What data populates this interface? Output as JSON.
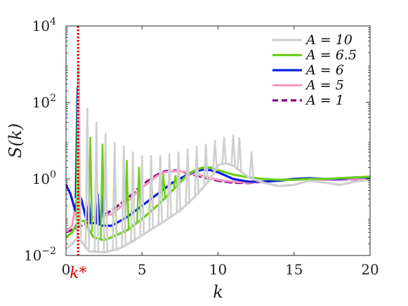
{
  "chart_data": {
    "type": "line",
    "xlabel": "k",
    "ylabel": "S(k)",
    "xlim": [
      0,
      20
    ],
    "ylim": [
      0.01,
      10000
    ],
    "yscale": "log",
    "xticks": [
      {
        "value": 0,
        "label": "0"
      },
      {
        "value": 5,
        "label": "5"
      },
      {
        "value": 10,
        "label": "10"
      },
      {
        "value": 15,
        "label": "15"
      },
      {
        "value": 20,
        "label": "20"
      }
    ],
    "yticks": [
      {
        "value": 0.01,
        "base": "10",
        "exp": "−2"
      },
      {
        "value": 1,
        "base": "10",
        "exp": "0"
      },
      {
        "value": 100,
        "base": "10",
        "exp": "2"
      },
      {
        "value": 10000,
        "base": "10",
        "exp": "4"
      }
    ],
    "grid": false,
    "legend_position": "top-right",
    "annotations": [
      {
        "text": "k*",
        "x": 0.8,
        "color": "#e00000",
        "style": "dotted-vertical-line"
      }
    ],
    "series": [
      {
        "name": "A = 10",
        "color": "#cfcfcf",
        "dash": "solid",
        "x": [
          0,
          0.4,
          0.8,
          1.5,
          2.5,
          3.5,
          4.5,
          5.5,
          6.5,
          7.5,
          8.5,
          9.5,
          10.0,
          10.5,
          11.0,
          11.5,
          12.0,
          13.0,
          14.0,
          15.0,
          16.0,
          17.0,
          18.0,
          19.0,
          20.0
        ],
        "y": [
          0.015,
          0.02,
          0.03,
          0.013,
          0.012,
          0.015,
          0.025,
          0.045,
          0.08,
          0.15,
          0.35,
          1.0,
          2.3,
          2.6,
          2.2,
          1.6,
          1.1,
          0.8,
          0.65,
          0.7,
          0.9,
          0.8,
          0.7,
          0.85,
          0.95
        ],
        "spikes": [
          {
            "x": 0.85,
            "y": 900
          },
          {
            "x": 1.4,
            "y": 70
          },
          {
            "x": 2.0,
            "y": 30
          },
          {
            "x": 2.6,
            "y": 15
          },
          {
            "x": 3.2,
            "y": 9
          },
          {
            "x": 3.8,
            "y": 7
          },
          {
            "x": 4.4,
            "y": 5
          },
          {
            "x": 5.0,
            "y": 4
          },
          {
            "x": 5.6,
            "y": 4
          },
          {
            "x": 6.2,
            "y": 4
          },
          {
            "x": 6.8,
            "y": 4.5
          },
          {
            "x": 7.4,
            "y": 5
          },
          {
            "x": 8.0,
            "y": 6
          },
          {
            "x": 8.6,
            "y": 7
          },
          {
            "x": 9.2,
            "y": 8
          },
          {
            "x": 9.8,
            "y": 10
          },
          {
            "x": 10.4,
            "y": 12
          },
          {
            "x": 11.0,
            "y": 14
          },
          {
            "x": 11.4,
            "y": 12
          },
          {
            "x": 12.2,
            "y": 5
          }
        ]
      },
      {
        "name": "A = 6.5",
        "color": "#6ad01a",
        "dash": "solid",
        "x": [
          0,
          0.4,
          0.8,
          1.2,
          1.8,
          2.5,
          3.0,
          4.0,
          5.0,
          6.0,
          7.0,
          8.0,
          8.5,
          9.0,
          9.5,
          10.0,
          11.0,
          12.0,
          13.0,
          14.0,
          15.0,
          16.0,
          17.0,
          18.0,
          19.0,
          20.0
        ],
        "y": [
          0.03,
          0.04,
          0.08,
          0.08,
          0.03,
          0.025,
          0.03,
          0.045,
          0.09,
          0.2,
          0.5,
          1.3,
          1.7,
          2.0,
          2.0,
          1.7,
          1.3,
          1.1,
          1.0,
          0.95,
          0.95,
          1.0,
          1.0,
          1.05,
          1.1,
          1.15
        ],
        "spikes": [
          {
            "x": 0.8,
            "y": 800
          },
          {
            "x": 1.6,
            "y": 12
          },
          {
            "x": 2.4,
            "y": 8
          },
          {
            "x": 3.2,
            "y": 5
          },
          {
            "x": 4.0,
            "y": 3
          },
          {
            "x": 4.8,
            "y": 2
          },
          {
            "x": 5.6,
            "y": 1.5
          },
          {
            "x": 6.4,
            "y": 1.3
          },
          {
            "x": 7.2,
            "y": 1.2
          },
          {
            "x": 8.0,
            "y": 1.3
          }
        ]
      },
      {
        "name": "A = 6",
        "color": "#0a1ee0",
        "dash": "solid",
        "x": [
          0,
          0.3,
          0.6,
          0.8,
          1.0,
          1.3,
          1.6,
          2.0,
          2.4,
          3.0,
          4.0,
          5.0,
          6.0,
          7.0,
          8.0,
          8.5,
          9.0,
          9.5,
          10.0,
          11.0,
          12.0,
          13.0,
          14.0,
          15.0,
          16.0,
          17.0,
          18.0,
          19.0,
          20.0
        ],
        "y": [
          0.7,
          0.4,
          0.15,
          0.4,
          0.3,
          0.1,
          0.07,
          0.07,
          0.06,
          0.06,
          0.1,
          0.2,
          0.4,
          0.8,
          1.3,
          1.6,
          1.75,
          1.7,
          1.5,
          1.0,
          0.85,
          0.85,
          0.9,
          1.0,
          1.05,
          1.0,
          1.0,
          1.1,
          1.1
        ],
        "spikes": [
          {
            "x": 0.75,
            "y": 250
          },
          {
            "x": 1.5,
            "y": 0.3
          },
          {
            "x": 2.1,
            "y": 0.4
          },
          {
            "x": 2.4,
            "y": 0.35
          }
        ]
      },
      {
        "name": "A = 5",
        "color": "#f59ac6",
        "dash": "solid",
        "x": [
          0,
          0.4,
          0.7,
          0.8,
          0.9,
          1.2,
          1.6,
          2.0,
          3.0,
          4.0,
          5.0,
          6.0,
          6.5,
          7.0,
          7.5,
          8.0,
          9.0,
          10.0,
          11.0,
          12.0,
          13.0,
          14.0,
          15.0,
          16.0,
          17.0,
          18.0,
          19.0,
          20.0
        ],
        "y": [
          0.04,
          0.06,
          0.3,
          1.0,
          0.4,
          0.15,
          0.1,
          0.1,
          0.12,
          0.25,
          0.6,
          1.2,
          1.5,
          1.6,
          1.6,
          1.5,
          1.2,
          0.95,
          0.85,
          0.8,
          0.85,
          0.95,
          1.0,
          1.0,
          0.95,
          0.95,
          1.0,
          1.0
        ]
      },
      {
        "name": "A = 1",
        "color": "#800080",
        "dash": "dashed",
        "x": [
          0,
          1.0,
          2.0,
          3.0,
          4.0,
          5.0,
          6.0,
          6.5,
          7.0,
          7.5,
          8.0,
          9.0,
          10.0,
          11.0,
          12.0,
          13.0,
          14.0,
          15.0,
          16.0,
          17.0,
          18.0,
          19.0,
          20.0
        ],
        "y": [
          0.04,
          0.06,
          0.09,
          0.15,
          0.3,
          0.7,
          1.3,
          1.6,
          1.7,
          1.6,
          1.4,
          1.1,
          0.9,
          0.8,
          0.78,
          0.85,
          0.95,
          1.0,
          1.0,
          0.95,
          0.95,
          0.98,
          1.0
        ]
      }
    ]
  }
}
